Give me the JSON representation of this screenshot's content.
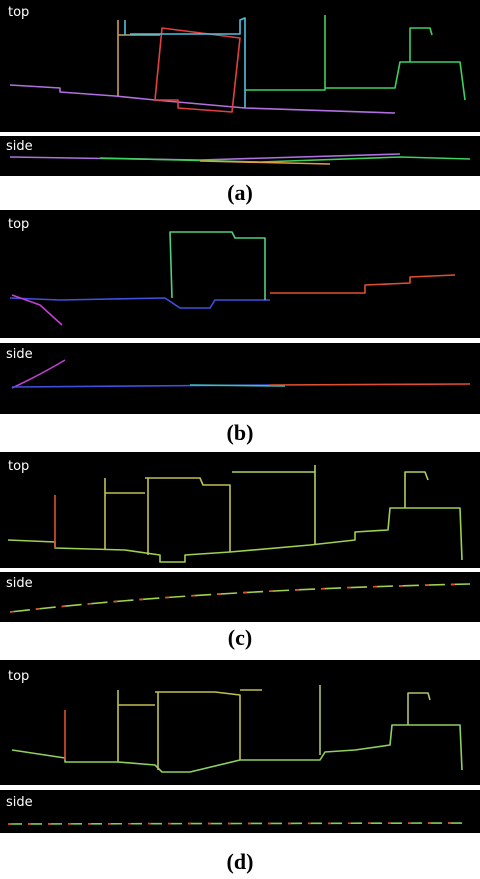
{
  "panels": [
    {
      "label": "(a)",
      "views": [
        {
          "label": "top"
        },
        {
          "label": "side"
        }
      ]
    },
    {
      "label": "(b)",
      "views": [
        {
          "label": "top"
        },
        {
          "label": "side"
        }
      ]
    },
    {
      "label": "(c)",
      "views": [
        {
          "label": "top"
        },
        {
          "label": "side"
        }
      ]
    },
    {
      "label": "(d)",
      "views": [
        {
          "label": "top"
        },
        {
          "label": "side"
        }
      ]
    }
  ]
}
